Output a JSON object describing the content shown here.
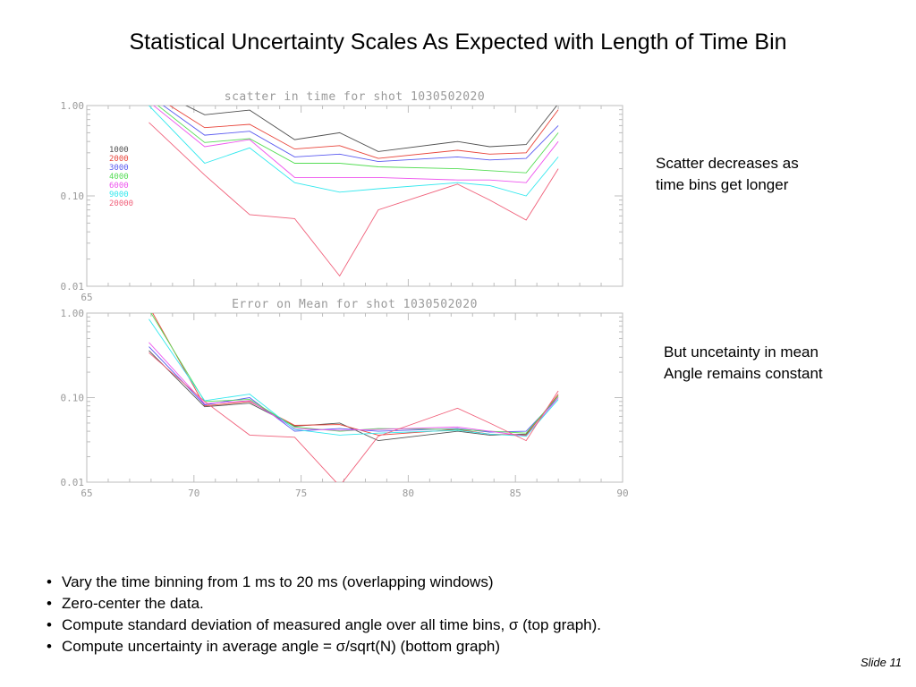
{
  "slide": {
    "title": "Statistical Uncertainty Scales As Expected with Length of Time Bin",
    "note_top": [
      "Scatter decreases as",
      "time bins get longer"
    ],
    "note_bottom": [
      "But uncetainty in mean",
      "Angle remains constant"
    ],
    "bullets": [
      "Vary the time binning from 1 ms to 20 ms (overlapping windows)",
      "Zero-center the data.",
      "Compute standard deviation of measured angle over all time bins, σ (top graph).",
      "Compute uncertainty in average angle = σ/sqrt(N) (bottom graph)"
    ],
    "slide_number": "Slide 11"
  },
  "chart_data": [
    {
      "type": "line",
      "title": "scatter in time for shot 1030502020",
      "xlabel": "",
      "ylabel": "",
      "xlim": [
        65,
        90
      ],
      "ylim": [
        0.01,
        1.0
      ],
      "y_scale": "log",
      "x_ticks": [
        65
      ],
      "x_tick_labels": [
        "65"
      ],
      "y_ticks": [
        1.0,
        0.1,
        0.01
      ],
      "y_tick_labels": [
        "1.00",
        "0.10",
        "0.01"
      ],
      "grid": false,
      "legend_position": "top-left",
      "series": [
        {
          "name": "1000",
          "color": "#505050",
          "x": [
            67.9,
            70.5,
            72.6,
            74.7,
            76.8,
            78.6,
            82.3,
            83.8,
            85.5,
            87.0
          ],
          "y": [
            1.6,
            0.79,
            0.89,
            0.42,
            0.5,
            0.31,
            0.4,
            0.35,
            0.37,
            1.05
          ]
        },
        {
          "name": "2000",
          "color": "#e8443a",
          "x": [
            67.9,
            70.5,
            72.6,
            74.7,
            76.8,
            78.6,
            82.3,
            83.8,
            85.5,
            87.0
          ],
          "y": [
            1.4,
            0.57,
            0.62,
            0.33,
            0.36,
            0.26,
            0.32,
            0.29,
            0.3,
            0.9
          ]
        },
        {
          "name": "3000",
          "color": "#5a5af0",
          "x": [
            67.9,
            70.5,
            72.6,
            74.7,
            76.8,
            78.6,
            82.3,
            83.8,
            85.5,
            87.0
          ],
          "y": [
            1.3,
            0.47,
            0.52,
            0.27,
            0.29,
            0.24,
            0.27,
            0.25,
            0.26,
            0.6
          ]
        },
        {
          "name": "4000",
          "color": "#55dd55",
          "x": [
            67.9,
            70.5,
            72.6,
            74.7,
            76.8,
            78.6,
            82.3,
            83.8,
            85.5,
            87.0
          ],
          "y": [
            1.2,
            0.39,
            0.43,
            0.23,
            0.23,
            0.21,
            0.2,
            0.19,
            0.18,
            0.5
          ]
        },
        {
          "name": "6000",
          "color": "#ee55ee",
          "x": [
            67.9,
            70.5,
            72.6,
            74.7,
            76.8,
            78.6,
            82.3,
            83.8,
            85.5,
            87.0
          ],
          "y": [
            1.1,
            0.35,
            0.42,
            0.16,
            0.16,
            0.16,
            0.15,
            0.15,
            0.14,
            0.4
          ]
        },
        {
          "name": "9000",
          "color": "#33e8ee",
          "x": [
            67.9,
            70.5,
            72.6,
            74.7,
            76.8,
            78.6,
            82.3,
            83.8,
            85.5,
            87.0
          ],
          "y": [
            1.0,
            0.23,
            0.34,
            0.14,
            0.11,
            0.12,
            0.14,
            0.13,
            0.1,
            0.27
          ]
        },
        {
          "name": "20000",
          "color": "#f0607a",
          "x": [
            67.9,
            70.5,
            72.6,
            74.7,
            76.8,
            78.6,
            82.3,
            83.8,
            85.5,
            87.0
          ],
          "y": [
            0.65,
            0.17,
            0.062,
            0.056,
            0.013,
            0.07,
            0.135,
            0.09,
            0.054,
            0.2
          ]
        }
      ]
    },
    {
      "type": "line",
      "title": "Error on Mean for shot 1030502020",
      "xlabel": "",
      "ylabel": "",
      "xlim": [
        65,
        90
      ],
      "ylim": [
        0.01,
        1.0
      ],
      "y_scale": "log",
      "x_ticks": [
        65,
        70,
        75,
        80,
        85,
        90
      ],
      "x_tick_labels": [
        "65",
        "70",
        "75",
        "80",
        "85",
        "90"
      ],
      "y_ticks": [
        1.0,
        0.1,
        0.01
      ],
      "y_tick_labels": [
        "1.00",
        "0.10",
        "0.01"
      ],
      "grid": false,
      "series": [
        {
          "name": "1000",
          "color": "#505050",
          "x": [
            67.9,
            70.5,
            72.6,
            74.7,
            76.8,
            78.6,
            82.3,
            83.8,
            85.5,
            87.0
          ],
          "y": [
            0.36,
            0.078,
            0.086,
            0.046,
            0.05,
            0.031,
            0.04,
            0.036,
            0.037,
            0.105
          ]
        },
        {
          "name": "2000",
          "color": "#e8443a",
          "x": [
            67.9,
            70.5,
            72.6,
            74.7,
            76.8,
            78.6,
            82.3,
            83.8,
            85.5,
            87.0
          ],
          "y": [
            1.2,
            0.08,
            0.09,
            0.047,
            0.048,
            0.036,
            0.042,
            0.037,
            0.036,
            0.11
          ]
        },
        {
          "name": "3000",
          "color": "#5a5af0",
          "x": [
            67.9,
            70.5,
            72.6,
            74.7,
            76.8,
            78.6,
            82.3,
            83.8,
            85.5,
            87.0
          ],
          "y": [
            0.4,
            0.082,
            0.1,
            0.04,
            0.043,
            0.04,
            0.043,
            0.039,
            0.04,
            0.1
          ]
        },
        {
          "name": "4000",
          "color": "#55dd55",
          "x": [
            67.9,
            70.5,
            72.6,
            74.7,
            76.8,
            78.6,
            82.3,
            83.8,
            85.5,
            87.0
          ],
          "y": [
            1.1,
            0.09,
            0.095,
            0.045,
            0.04,
            0.043,
            0.042,
            0.04,
            0.038,
            0.105
          ]
        },
        {
          "name": "6000",
          "color": "#ee55ee",
          "x": [
            67.9,
            70.5,
            72.6,
            74.7,
            76.8,
            78.6,
            82.3,
            83.8,
            85.5,
            87.0
          ],
          "y": [
            0.45,
            0.085,
            0.092,
            0.043,
            0.041,
            0.042,
            0.045,
            0.04,
            0.035,
            0.1
          ]
        },
        {
          "name": "9000",
          "color": "#33e8ee",
          "x": [
            67.9,
            70.5,
            72.6,
            74.7,
            76.8,
            78.6,
            82.3,
            83.8,
            85.5,
            87.0
          ],
          "y": [
            0.85,
            0.092,
            0.11,
            0.042,
            0.036,
            0.038,
            0.041,
            0.037,
            0.035,
            0.095
          ]
        },
        {
          "name": "20000",
          "color": "#f0607a",
          "x": [
            67.9,
            70.5,
            72.6,
            74.7,
            76.8,
            78.6,
            82.3,
            83.8,
            85.5,
            87.0
          ],
          "y": [
            0.34,
            0.09,
            0.036,
            0.034,
            0.009,
            0.035,
            0.075,
            0.05,
            0.031,
            0.12
          ]
        }
      ]
    }
  ]
}
